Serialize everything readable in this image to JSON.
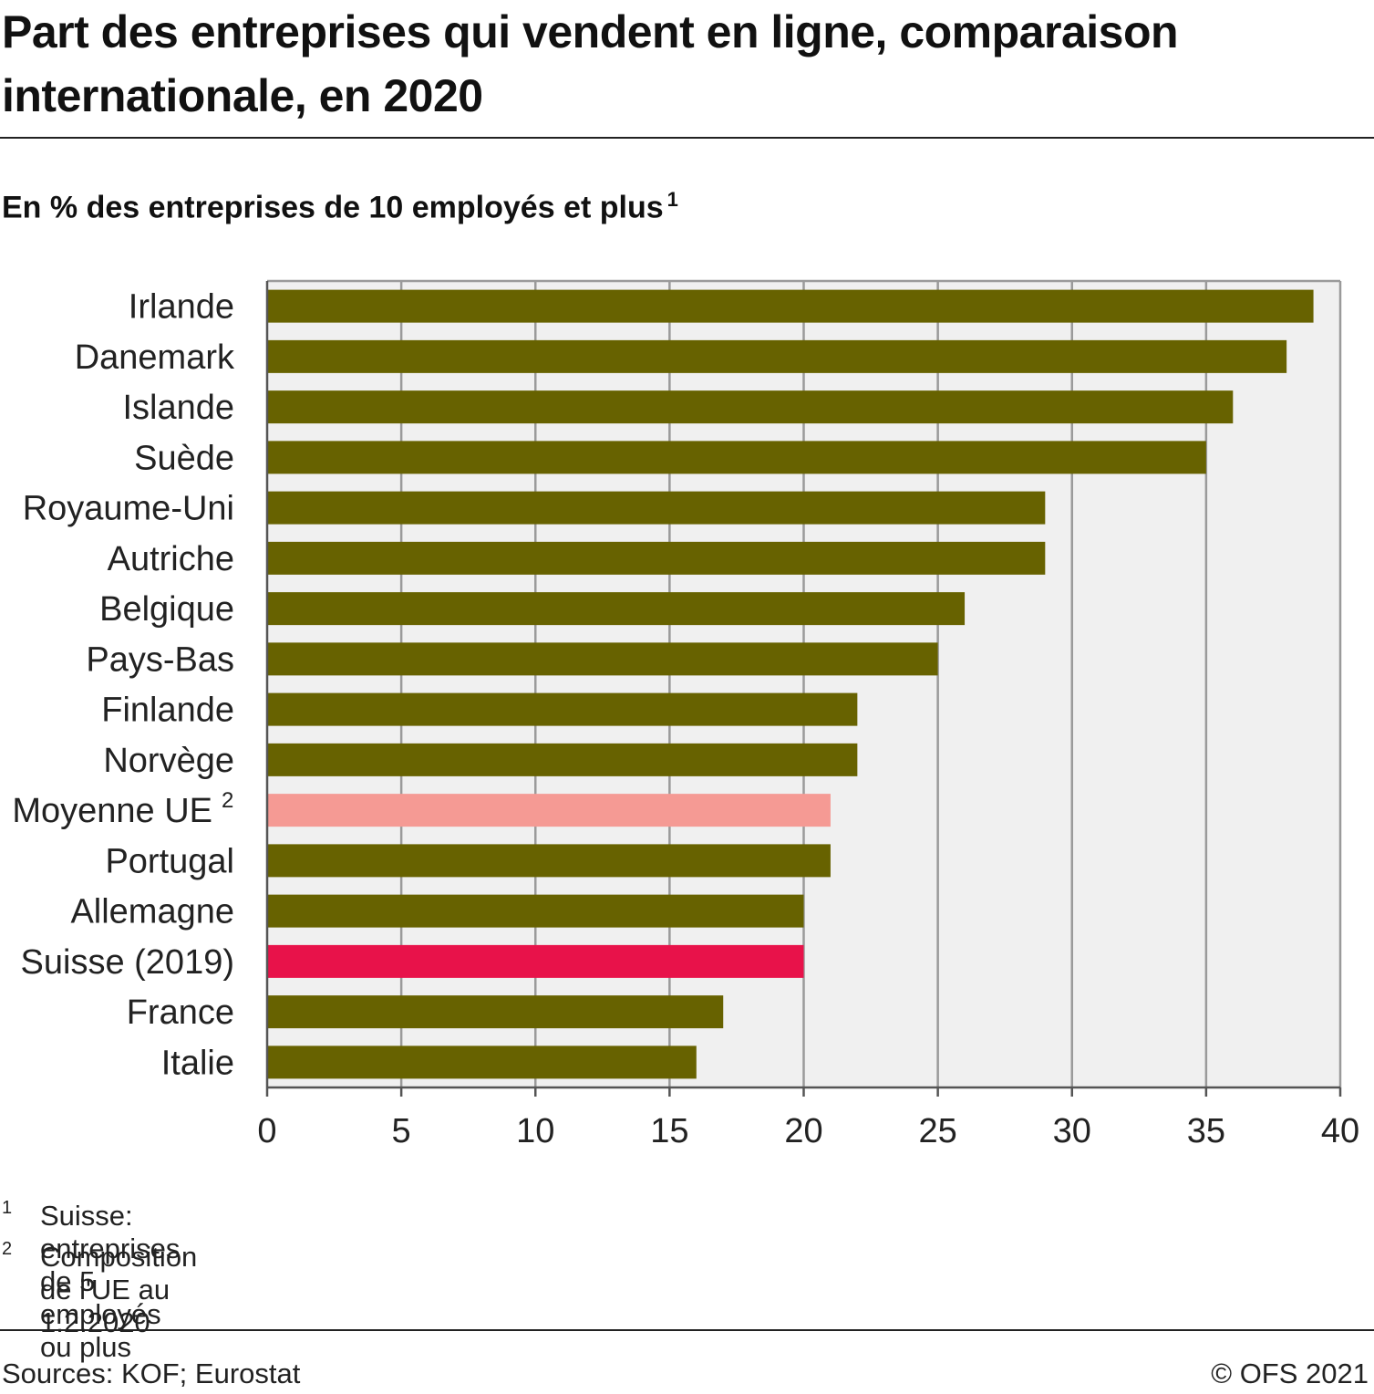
{
  "title": "Part des entreprises qui vendent en ligne, comparaison internationale, en 2020",
  "subtitle": "En % des entreprises de 10 employés et plus",
  "subtitle_note": "1",
  "footnotes": [
    {
      "num": "1",
      "text": "Suisse: entreprises de 5 employés ou plus"
    },
    {
      "num": "2",
      "text": "Composition de l'UE au 1.2.2020"
    }
  ],
  "sources": "Sources: KOF; Eurostat",
  "copyright": "© OFS 2021",
  "colors": {
    "default_bar": "#676200",
    "eu_bar": "#f59a94",
    "swiss_bar": "#e8124a",
    "plot_bg": "#f0f0f0",
    "grid": "#9a9a9a"
  },
  "chart_data": {
    "type": "bar",
    "orientation": "horizontal",
    "categories": [
      "Irlande",
      "Danemark",
      "Islande",
      "Suède",
      "Royaume-Uni",
      "Autriche",
      "Belgique",
      "Pays-Bas",
      "Finlande",
      "Norvège",
      "Moyenne UE",
      "Portugal",
      "Allemagne",
      "Suisse (2019)",
      "France",
      "Italie"
    ],
    "category_notes": [
      "",
      "",
      "",
      "",
      "",
      "",
      "",
      "",
      "",
      "",
      "2",
      "",
      "",
      "",
      "",
      ""
    ],
    "values": [
      39,
      38,
      36,
      35,
      29,
      29,
      26,
      25,
      22,
      22,
      21,
      21,
      20,
      20,
      17,
      16
    ],
    "highlight": [
      "",
      "",
      "",
      "",
      "",
      "",
      "",
      "",
      "",
      "",
      "eu",
      "",
      "",
      "swiss",
      "",
      ""
    ],
    "xlim": [
      0,
      40
    ],
    "xticks": [
      0,
      5,
      10,
      15,
      20,
      25,
      30,
      35,
      40
    ],
    "grid": true,
    "legend": false
  }
}
